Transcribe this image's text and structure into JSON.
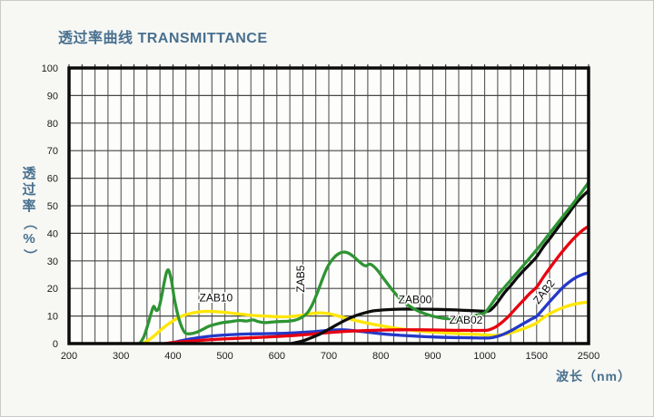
{
  "page": {
    "background": "#f7f7f4",
    "frame_border": "#c9c9c6"
  },
  "chart": {
    "title": "透过率曲线 TRANSMITTANCE",
    "title_color": "#48708f",
    "ylabel": "透过率（%）",
    "xlabel": "波长（nm）"
  },
  "chart_data": {
    "type": "line",
    "title": "透过率曲线 TRANSMITTANCE",
    "xlabel": "波长（nm）",
    "ylabel": "透过率（%）",
    "x_unit": "nm",
    "y_unit": "%",
    "ylim": [
      0,
      100
    ],
    "y_ticks": [
      0,
      10,
      20,
      30,
      40,
      50,
      60,
      70,
      80,
      90,
      100
    ],
    "x_ticks": [
      200,
      300,
      400,
      500,
      600,
      700,
      800,
      900,
      1000,
      1500,
      2500
    ],
    "x_scale_note": "non-linear axis: each labeled interval (100nm from 200-1000, 500nm to 1500, 1000nm to 2500) occupies one equal major column with 4 minor grid divisions",
    "x_segments": [
      {
        "from": 200,
        "to": 1000,
        "units": 32
      },
      {
        "from": 1000,
        "to": 1500,
        "units": 4
      },
      {
        "from": 1500,
        "to": 2500,
        "units": 4
      }
    ],
    "grid": "on",
    "grid_color": "#474747",
    "plot_border_color": "#0b0b0b",
    "plot_background": "#fdfdfb",
    "legend_position": "inline-labels",
    "series": [
      {
        "name": "ZAB10",
        "color": "#ffe600",
        "points": [
          [
            342,
            0
          ],
          [
            355,
            1.5
          ],
          [
            368,
            3.5
          ],
          [
            380,
            5.5
          ],
          [
            392,
            7.2
          ],
          [
            405,
            8.8
          ],
          [
            420,
            10.2
          ],
          [
            435,
            11
          ],
          [
            450,
            11.5
          ],
          [
            465,
            11.7
          ],
          [
            480,
            11.6
          ],
          [
            495,
            11.4
          ],
          [
            515,
            11
          ],
          [
            535,
            10.6
          ],
          [
            555,
            10.2
          ],
          [
            575,
            10
          ],
          [
            595,
            9.8
          ],
          [
            615,
            9.7
          ],
          [
            632,
            9.9
          ],
          [
            648,
            10.3
          ],
          [
            662,
            10.8
          ],
          [
            676,
            11.1
          ],
          [
            690,
            11.1
          ],
          [
            704,
            10.7
          ],
          [
            720,
            9.9
          ],
          [
            740,
            8.9
          ],
          [
            762,
            7.9
          ],
          [
            788,
            6.9
          ],
          [
            812,
            6.1
          ],
          [
            840,
            5.3
          ],
          [
            868,
            4.7
          ],
          [
            898,
            4.2
          ],
          [
            930,
            3.8
          ],
          [
            963,
            3.5
          ],
          [
            1000,
            3.2
          ],
          [
            1060,
            3
          ],
          [
            1120,
            3
          ],
          [
            1180,
            3.3
          ],
          [
            1250,
            3.9
          ],
          [
            1310,
            4.6
          ],
          [
            1375,
            5.4
          ],
          [
            1440,
            6.4
          ],
          [
            1500,
            7.5
          ],
          [
            1625,
            9.3
          ],
          [
            1750,
            10.8
          ],
          [
            1875,
            12
          ],
          [
            2000,
            13
          ],
          [
            2125,
            13.8
          ],
          [
            2250,
            14.4
          ],
          [
            2375,
            14.8
          ],
          [
            2500,
            15.1
          ]
        ]
      },
      {
        "name": "ZAB02",
        "color": "#2438c8",
        "points": [
          [
            392,
            0
          ],
          [
            408,
            0.7
          ],
          [
            425,
            1.4
          ],
          [
            445,
            2
          ],
          [
            468,
            2.6
          ],
          [
            492,
            3
          ],
          [
            518,
            3.3
          ],
          [
            545,
            3.5
          ],
          [
            575,
            3.6
          ],
          [
            605,
            3.7
          ],
          [
            635,
            3.9
          ],
          [
            662,
            4.2
          ],
          [
            688,
            4.6
          ],
          [
            708,
            4.9
          ],
          [
            725,
            5
          ],
          [
            742,
            4.8
          ],
          [
            762,
            4.4
          ],
          [
            785,
            3.9
          ],
          [
            810,
            3.4
          ],
          [
            838,
            3
          ],
          [
            868,
            2.7
          ],
          [
            900,
            2.4
          ],
          [
            935,
            2.2
          ],
          [
            970,
            2.1
          ],
          [
            1010,
            2
          ],
          [
            1060,
            2.1
          ],
          [
            1110,
            2.5
          ],
          [
            1175,
            3.3
          ],
          [
            1250,
            4.6
          ],
          [
            1315,
            6
          ],
          [
            1375,
            7.3
          ],
          [
            1440,
            8.7
          ],
          [
            1500,
            9.9
          ],
          [
            1625,
            12.5
          ],
          [
            1750,
            15.2
          ],
          [
            1875,
            17.8
          ],
          [
            2000,
            20.3
          ],
          [
            2125,
            22.3
          ],
          [
            2250,
            23.9
          ],
          [
            2375,
            25
          ],
          [
            2500,
            25.7
          ]
        ]
      },
      {
        "name": "ZAB2",
        "color": "#e8000f",
        "points": [
          [
            385,
            0
          ],
          [
            400,
            0.4
          ],
          [
            425,
            0.8
          ],
          [
            455,
            1.2
          ],
          [
            490,
            1.6
          ],
          [
            525,
            1.9
          ],
          [
            560,
            2.2
          ],
          [
            595,
            2.5
          ],
          [
            630,
            2.9
          ],
          [
            660,
            3.3
          ],
          [
            690,
            3.8
          ],
          [
            715,
            4.2
          ],
          [
            740,
            4.5
          ],
          [
            770,
            4.7
          ],
          [
            800,
            4.9
          ],
          [
            840,
            5
          ],
          [
            880,
            5
          ],
          [
            920,
            4.9
          ],
          [
            960,
            4.8
          ],
          [
            1000,
            4.8
          ],
          [
            1050,
            5.1
          ],
          [
            1100,
            5.9
          ],
          [
            1150,
            7.2
          ],
          [
            1200,
            8.8
          ],
          [
            1250,
            10.7
          ],
          [
            1310,
            13.2
          ],
          [
            1375,
            15.8
          ],
          [
            1440,
            18.4
          ],
          [
            1500,
            20.5
          ],
          [
            1625,
            24
          ],
          [
            1750,
            27.3
          ],
          [
            1875,
            30.5
          ],
          [
            2000,
            33.5
          ],
          [
            2125,
            36.3
          ],
          [
            2250,
            38.8
          ],
          [
            2375,
            41
          ],
          [
            2500,
            42.6
          ]
        ]
      },
      {
        "name": "ZAB00",
        "color": "#0d0d0d",
        "points": [
          [
            628,
            0
          ],
          [
            645,
            0.7
          ],
          [
            662,
            1.8
          ],
          [
            680,
            3.2
          ],
          [
            698,
            5
          ],
          [
            715,
            6.8
          ],
          [
            732,
            8.5
          ],
          [
            750,
            10
          ],
          [
            768,
            11.1
          ],
          [
            788,
            11.9
          ],
          [
            812,
            12.3
          ],
          [
            840,
            12.5
          ],
          [
            875,
            12.5
          ],
          [
            910,
            12.4
          ],
          [
            945,
            12.2
          ],
          [
            980,
            11.9
          ],
          [
            1015,
            11.7
          ],
          [
            1050,
            12
          ],
          [
            1085,
            13.2
          ],
          [
            1125,
            15
          ],
          [
            1185,
            18.2
          ],
          [
            1250,
            21
          ],
          [
            1315,
            24
          ],
          [
            1375,
            26.5
          ],
          [
            1440,
            29
          ],
          [
            1500,
            31.5
          ],
          [
            1625,
            35
          ],
          [
            1750,
            38
          ],
          [
            1875,
            41.2
          ],
          [
            2000,
            44.3
          ],
          [
            2125,
            47.5
          ],
          [
            2250,
            50.7
          ],
          [
            2375,
            53.3
          ],
          [
            2500,
            55.5
          ]
        ]
      },
      {
        "name": "ZAB5",
        "color": "#2e9433",
        "points": [
          [
            336,
            0
          ],
          [
            344,
            2.5
          ],
          [
            352,
            7
          ],
          [
            358,
            11
          ],
          [
            363,
            13.5
          ],
          [
            368,
            12
          ],
          [
            373,
            13
          ],
          [
            378,
            17
          ],
          [
            383,
            22
          ],
          [
            388,
            26
          ],
          [
            392,
            26.5
          ],
          [
            397,
            23
          ],
          [
            403,
            16
          ],
          [
            410,
            10
          ],
          [
            417,
            6
          ],
          [
            424,
            3.8
          ],
          [
            434,
            3.6
          ],
          [
            444,
            4
          ],
          [
            456,
            5
          ],
          [
            468,
            6.2
          ],
          [
            482,
            7
          ],
          [
            496,
            7.6
          ],
          [
            512,
            8
          ],
          [
            528,
            8.4
          ],
          [
            542,
            8.2
          ],
          [
            554,
            8.6
          ],
          [
            564,
            8
          ],
          [
            576,
            7.6
          ],
          [
            590,
            7.8
          ],
          [
            605,
            8
          ],
          [
            620,
            8.1
          ],
          [
            635,
            8.5
          ],
          [
            648,
            9.5
          ],
          [
            658,
            11
          ],
          [
            668,
            14
          ],
          [
            678,
            18.5
          ],
          [
            688,
            23.5
          ],
          [
            698,
            28
          ],
          [
            708,
            30.8
          ],
          [
            718,
            32.5
          ],
          [
            728,
            33.2
          ],
          [
            738,
            32.8
          ],
          [
            748,
            31.5
          ],
          [
            758,
            29.8
          ],
          [
            766,
            28.6
          ],
          [
            772,
            28.2
          ],
          [
            778,
            28.8
          ],
          [
            784,
            28.4
          ],
          [
            794,
            26.5
          ],
          [
            806,
            23.5
          ],
          [
            820,
            20
          ],
          [
            836,
            16.5
          ],
          [
            852,
            14
          ],
          [
            870,
            12
          ],
          [
            890,
            10.5
          ],
          [
            910,
            9.5
          ],
          [
            930,
            9
          ],
          [
            950,
            9
          ],
          [
            970,
            9.6
          ],
          [
            985,
            10.4
          ],
          [
            1000,
            11.2
          ],
          [
            1060,
            14
          ],
          [
            1125,
            17.5
          ],
          [
            1250,
            23
          ],
          [
            1375,
            28.5
          ],
          [
            1500,
            34
          ],
          [
            1750,
            40
          ],
          [
            2000,
            46
          ],
          [
            2250,
            52
          ],
          [
            2500,
            58.5
          ]
        ]
      }
    ],
    "labels": [
      {
        "text": "ZAB10",
        "x_nm": 483,
        "y_pct": 15.3,
        "rotate": 0
      },
      {
        "text": "ZAB5",
        "x_nm": 653,
        "y_pct": 23.5,
        "rotate": -90
      },
      {
        "text": "ZAB00",
        "x_nm": 866,
        "y_pct": 14.6,
        "rotate": 0
      },
      {
        "text": "ZAB02",
        "x_nm": 964,
        "y_pct": 7.2,
        "rotate": 0
      },
      {
        "text": "ZAB2",
        "x_nm": 1695,
        "y_pct": 18,
        "rotate": -52
      }
    ]
  }
}
